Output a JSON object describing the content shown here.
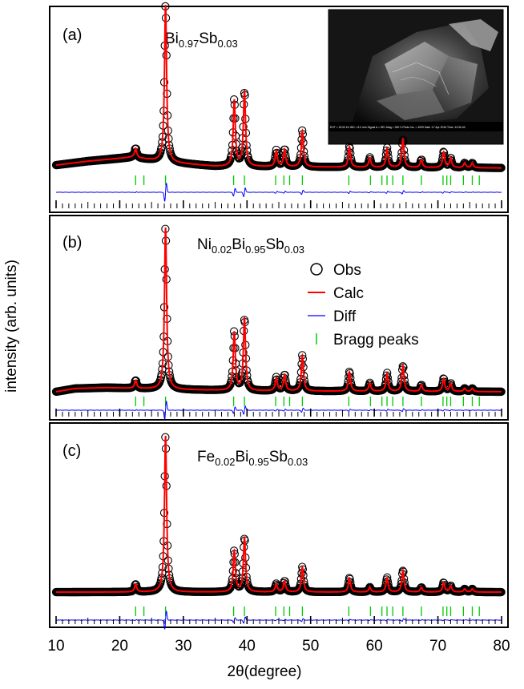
{
  "figure": {
    "ylabel": "intensity (arb. units)",
    "xlabel": "2θ(degree)",
    "xticks": [
      10,
      20,
      30,
      40,
      50,
      60,
      70,
      80
    ],
    "xlim": [
      10,
      80
    ]
  },
  "legend": {
    "position": "inside-right of panel (b)",
    "entries": [
      {
        "label": "Obs",
        "symbol": "open-circle",
        "color": "#000000"
      },
      {
        "label": "Calc",
        "symbol": "line",
        "color": "#ff0000"
      },
      {
        "label": "Diff",
        "symbol": "line",
        "color": "#0000ff"
      },
      {
        "label": "Bragg peaks",
        "symbol": "tick",
        "color": "#00cc00"
      }
    ]
  },
  "inset": {
    "description": "SEM image of crystal",
    "caption": "EHT = 20.00 kV  WD = 8.0 mm  Signal A = SE1  Mag = 300 X  Photo No. = 4929  Date :17 Apr 2015  Time :12:32:43"
  },
  "chart_data": [
    {
      "type": "line",
      "panel_label": "(a)",
      "sample": {
        "base": "Bi",
        "sub1": "0.97",
        "base2": "Sb",
        "sub2": "0.03"
      },
      "xlabel": "2θ(degree)",
      "ylabel": "intensity (arb. units)",
      "xlim": [
        10,
        80
      ],
      "grid": false,
      "background": [
        [
          10,
          0.03
        ],
        [
          15,
          0.055
        ],
        [
          22,
          0.08
        ],
        [
          27,
          0.05
        ],
        [
          35,
          0.022
        ],
        [
          50,
          0.018
        ],
        [
          80,
          0.012
        ]
      ],
      "peaks": [
        [
          22.5,
          0.06
        ],
        [
          27.2,
          1.0
        ],
        [
          38.0,
          0.42
        ],
        [
          39.6,
          0.48
        ],
        [
          44.6,
          0.1
        ],
        [
          45.9,
          0.11
        ],
        [
          48.7,
          0.23
        ],
        [
          56.1,
          0.13
        ],
        [
          59.3,
          0.06
        ],
        [
          62.0,
          0.12
        ],
        [
          64.5,
          0.18
        ],
        [
          67.4,
          0.05
        ],
        [
          70.9,
          0.1
        ],
        [
          72.0,
          0.06
        ],
        [
          74.2,
          0.03
        ],
        [
          75.4,
          0.03
        ]
      ],
      "bragg_positions": [
        22.5,
        23.8,
        27.2,
        37.9,
        39.6,
        44.5,
        45.8,
        46.7,
        48.7,
        56.0,
        59.4,
        61.2,
        62.0,
        62.9,
        64.5,
        67.4,
        70.8,
        71.4,
        72.0,
        74.0,
        75.4,
        76.5
      ]
    },
    {
      "type": "line",
      "panel_label": "(b)",
      "sample": {
        "prefix": "Ni",
        "sub0": "0.02",
        "base": "Bi",
        "sub1": "0.95",
        "base2": "Sb",
        "sub2": "0.03"
      },
      "xlabel": "2θ(degree)",
      "ylabel": "intensity (arb. units)",
      "xlim": [
        10,
        80
      ],
      "grid": false,
      "background": [
        [
          10,
          0.01
        ],
        [
          13,
          0.03
        ],
        [
          18,
          0.035
        ],
        [
          27,
          0.025
        ],
        [
          40,
          0.015
        ],
        [
          80,
          0.01
        ]
      ],
      "peaks": [
        [
          22.5,
          0.05
        ],
        [
          27.2,
          1.0
        ],
        [
          38.0,
          0.36
        ],
        [
          39.6,
          0.45
        ],
        [
          44.6,
          0.08
        ],
        [
          45.9,
          0.1
        ],
        [
          48.7,
          0.22
        ],
        [
          56.1,
          0.12
        ],
        [
          59.3,
          0.05
        ],
        [
          62.0,
          0.11
        ],
        [
          64.5,
          0.16
        ],
        [
          67.4,
          0.04
        ],
        [
          70.9,
          0.08
        ],
        [
          72.0,
          0.05
        ],
        [
          74.2,
          0.02
        ],
        [
          75.4,
          0.02
        ]
      ],
      "bragg_positions": [
        22.5,
        23.8,
        27.2,
        37.9,
        39.6,
        44.5,
        45.8,
        46.7,
        48.7,
        56.0,
        59.4,
        61.2,
        62.0,
        62.9,
        64.5,
        67.4,
        70.8,
        71.4,
        72.0,
        74.0,
        75.4,
        76.5
      ]
    },
    {
      "type": "line",
      "panel_label": "(c)",
      "sample": {
        "prefix": "Fe",
        "sub0": "0.02",
        "base": "Bi",
        "sub1": "0.95",
        "base2": "Sb",
        "sub2": "0.03"
      },
      "xlabel": "2θ(degree)",
      "ylabel": "intensity (arb. units)",
      "xlim": [
        10,
        80
      ],
      "grid": false,
      "background": [
        [
          10,
          0.01
        ],
        [
          20,
          0.01
        ],
        [
          80,
          0.01
        ]
      ],
      "peaks": [
        [
          22.5,
          0.05
        ],
        [
          27.2,
          1.0
        ],
        [
          38.0,
          0.26
        ],
        [
          39.6,
          0.35
        ],
        [
          44.6,
          0.05
        ],
        [
          45.9,
          0.07
        ],
        [
          48.7,
          0.16
        ],
        [
          56.1,
          0.09
        ],
        [
          59.3,
          0.03
        ],
        [
          62.0,
          0.09
        ],
        [
          64.5,
          0.14
        ],
        [
          67.4,
          0.03
        ],
        [
          70.9,
          0.06
        ],
        [
          72.0,
          0.04
        ],
        [
          74.2,
          0.02
        ],
        [
          75.4,
          0.02
        ]
      ],
      "bragg_positions": [
        22.5,
        23.8,
        27.2,
        37.9,
        39.6,
        44.5,
        45.8,
        46.7,
        48.7,
        56.0,
        59.4,
        61.2,
        62.0,
        62.9,
        64.5,
        67.4,
        70.8,
        71.4,
        72.0,
        74.0,
        75.4,
        76.5
      ]
    }
  ]
}
